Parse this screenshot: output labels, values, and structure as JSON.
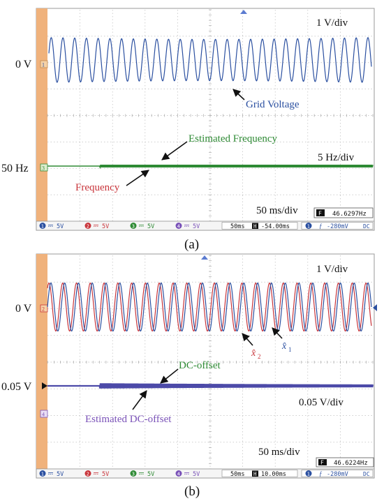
{
  "colors": {
    "ch1": "#2a4fa0",
    "ch2": "#c8343a",
    "ch3": "#2e8a34",
    "ch4": "#7a52b8",
    "sidebar": "#f0b27c",
    "grid": "#bdbdbd",
    "text": "#111111"
  },
  "scope_status": {
    "channels": [
      {
        "num": "1",
        "coupling": "5V"
      },
      {
        "num": "2",
        "coupling": "5V"
      },
      {
        "num": "3",
        "coupling": "5V"
      },
      {
        "num": "4",
        "coupling": "5V"
      }
    ],
    "trigger_channel": "1",
    "trigger_slope": "ƒ",
    "trigger_level": "-280mV",
    "trigger_coupling": "DC",
    "h_label": "H",
    "f_label": "F"
  },
  "chart_data": [
    {
      "type": "line",
      "panel_label": "(a)",
      "scale_top": "1 V/div",
      "scale_bottom": "5 Hz/div",
      "time_div": "50 ms/div",
      "freq_readout": "46.6297Hz",
      "timebase": "50ms",
      "h_position": "-54.00ms",
      "y_markers": [
        {
          "text": "0 V",
          "channel": "1"
        },
        {
          "text": "50 Hz",
          "channel": "3"
        }
      ],
      "annotations": [
        {
          "text": "Grid Voltage",
          "color": "#2a4fa0"
        },
        {
          "text": "Estimated Frequency",
          "color": "#2e8a34"
        },
        {
          "text": "Frequency",
          "color": "#c8343a"
        }
      ],
      "series": [
        {
          "name": "Grid Voltage",
          "channel": "1",
          "cycles": 27.5,
          "amplitude_div": 0.85,
          "offset_div": 0
        },
        {
          "name": "Frequency",
          "channel": "3",
          "level_hz": 50,
          "ripple": 0.02,
          "ripple_start_div": 1.6
        }
      ],
      "xlim_div": [
        0,
        10
      ],
      "ylim_div": [
        -4,
        4
      ],
      "grid": true
    },
    {
      "type": "line",
      "panel_label": "(b)",
      "scale_top": "1 V/div",
      "scale_bottom": "0.05 V/div",
      "time_div": "50 ms/div",
      "freq_readout": "46.6224Hz",
      "timebase": "50ms",
      "h_position": "10.00ms",
      "y_markers": [
        {
          "text": "0 V",
          "channel": "2"
        },
        {
          "text": "0.05 V",
          "channel": ""
        }
      ],
      "annotations": [
        {
          "text": "DC-offset",
          "color": "#2e8a34"
        },
        {
          "text": "Estimated DC-offset",
          "color": "#7a52b8"
        },
        {
          "text": "x̂",
          "sub": "2",
          "color": "#c8343a"
        },
        {
          "text": "x̂",
          "sub": "1",
          "color": "#2a4fa0"
        }
      ],
      "series": [
        {
          "name": "x̂1",
          "channel": "1",
          "cycles": 23.5,
          "amplitude_div": 0.9,
          "offset_div": 0
        },
        {
          "name": "x̂2",
          "channel": "2",
          "cycles": 23.5,
          "amplitude_div": 0.9,
          "offset_div": 0,
          "phase": 0.9
        },
        {
          "name": "DC-offset",
          "channel": "3",
          "level_v": 0.05,
          "ripple_start_div": 1.6
        },
        {
          "name": "Estimated DC-offset",
          "channel": "4",
          "level_v": 0.05
        }
      ],
      "xlim_div": [
        0,
        10
      ],
      "ylim_div": [
        -4,
        4
      ],
      "grid": true
    }
  ]
}
